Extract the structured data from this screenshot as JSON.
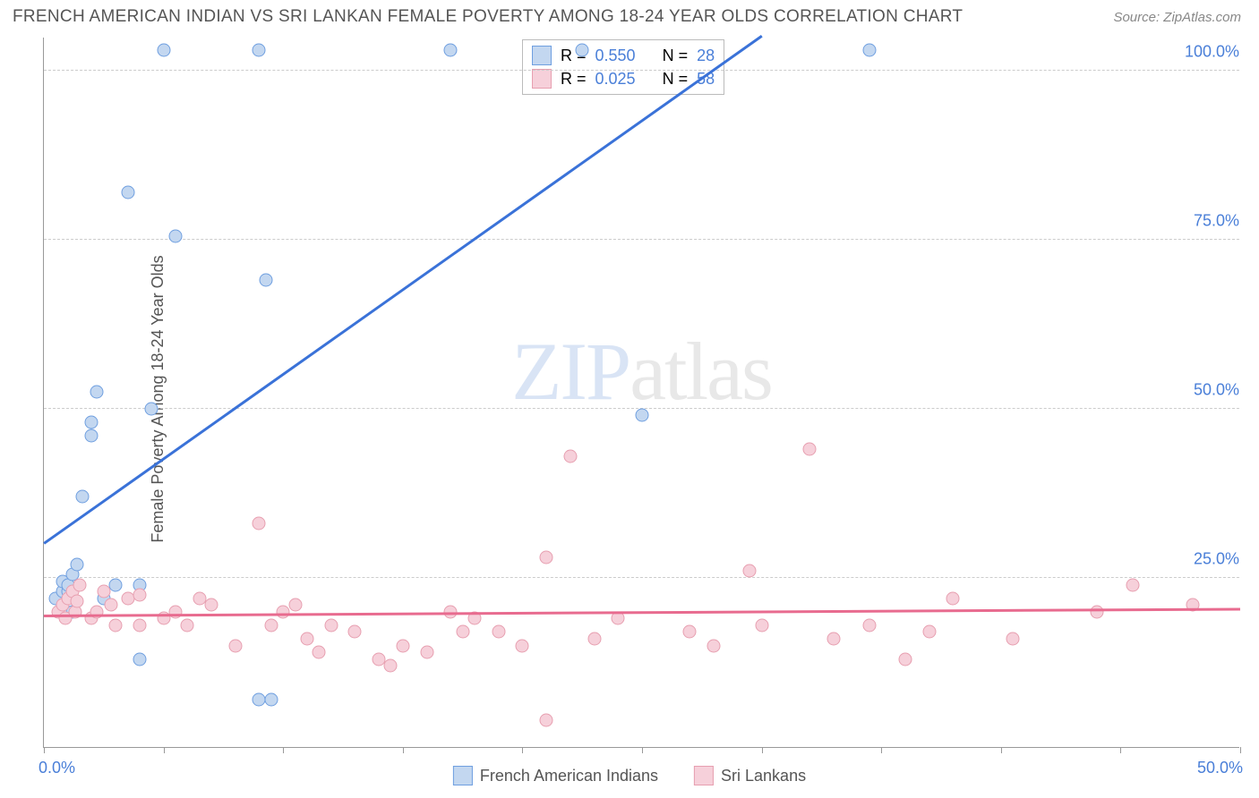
{
  "title": "FRENCH AMERICAN INDIAN VS SRI LANKAN FEMALE POVERTY AMONG 18-24 YEAR OLDS CORRELATION CHART",
  "source": "Source: ZipAtlas.com",
  "y_axis_title": "Female Poverty Among 18-24 Year Olds",
  "watermark_a": "ZIP",
  "watermark_b": "atlas",
  "chart": {
    "type": "scatter",
    "xlim": [
      0,
      50
    ],
    "ylim": [
      0,
      105
    ],
    "x_ticks": [
      0,
      5,
      10,
      15,
      20,
      25,
      30,
      35,
      40,
      45,
      50
    ],
    "y_grid": [
      25,
      50,
      75,
      100
    ],
    "x_origin_label": "0.0%",
    "x_end_label": "50.0%",
    "y_tick_labels": {
      "25": "25.0%",
      "50": "50.0%",
      "75": "75.0%",
      "100": "100.0%"
    },
    "background_color": "#ffffff",
    "grid_color": "#cccccc",
    "axis_color": "#999999",
    "series": [
      {
        "name": "French American Indians",
        "fill": "#c3d7f0",
        "stroke": "#6f9fe0",
        "trend_color": "#3a72d8",
        "trend": {
          "x1": 0,
          "y1": 30,
          "x2": 30,
          "y2": 105
        },
        "R": "0.550",
        "N": "28",
        "points": [
          [
            0.5,
            22
          ],
          [
            0.8,
            23
          ],
          [
            0.8,
            24.5
          ],
          [
            1.0,
            23
          ],
          [
            1.0,
            24
          ],
          [
            1.2,
            25.5
          ],
          [
            1.2,
            20
          ],
          [
            1.4,
            27
          ],
          [
            1.6,
            37
          ],
          [
            2.0,
            46
          ],
          [
            2.0,
            48
          ],
          [
            2.2,
            52.5
          ],
          [
            2.5,
            22
          ],
          [
            3.0,
            24
          ],
          [
            3.5,
            82
          ],
          [
            4.0,
            13
          ],
          [
            4.0,
            24
          ],
          [
            4.5,
            50
          ],
          [
            5.0,
            103
          ],
          [
            5.5,
            75.5
          ],
          [
            9.0,
            103
          ],
          [
            9.0,
            7
          ],
          [
            9.3,
            69
          ],
          [
            9.5,
            7
          ],
          [
            17.0,
            103
          ],
          [
            22.5,
            103
          ],
          [
            25.0,
            49
          ],
          [
            34.5,
            103
          ]
        ]
      },
      {
        "name": "Sri Lankans",
        "fill": "#f6d0da",
        "stroke": "#e79fb0",
        "trend_color": "#e86b8f",
        "trend": {
          "x1": 0,
          "y1": 19.2,
          "x2": 50,
          "y2": 20.2
        },
        "R": "0.025",
        "N": "58",
        "points": [
          [
            0.6,
            20
          ],
          [
            0.8,
            21
          ],
          [
            0.9,
            19
          ],
          [
            1.0,
            22
          ],
          [
            1.2,
            23
          ],
          [
            1.3,
            20
          ],
          [
            1.4,
            21.5
          ],
          [
            1.5,
            24
          ],
          [
            2.0,
            19
          ],
          [
            2.2,
            20
          ],
          [
            2.5,
            23
          ],
          [
            2.8,
            21
          ],
          [
            3.0,
            18
          ],
          [
            3.5,
            22
          ],
          [
            4.0,
            18
          ],
          [
            4.0,
            22.5
          ],
          [
            5.0,
            19
          ],
          [
            5.5,
            20
          ],
          [
            6.0,
            18
          ],
          [
            6.5,
            22
          ],
          [
            7.0,
            21
          ],
          [
            8.0,
            15
          ],
          [
            9.0,
            33
          ],
          [
            9.5,
            18
          ],
          [
            10.0,
            20
          ],
          [
            10.5,
            21
          ],
          [
            11.0,
            16
          ],
          [
            11.5,
            14
          ],
          [
            12.0,
            18
          ],
          [
            13.0,
            17
          ],
          [
            14.0,
            13
          ],
          [
            14.5,
            12
          ],
          [
            15.0,
            15
          ],
          [
            16.0,
            14
          ],
          [
            17.0,
            20
          ],
          [
            17.5,
            17
          ],
          [
            18.0,
            19
          ],
          [
            19.0,
            17
          ],
          [
            20.0,
            15
          ],
          [
            21.0,
            28
          ],
          [
            21.0,
            4
          ],
          [
            22.0,
            43
          ],
          [
            23.0,
            16
          ],
          [
            24.0,
            19
          ],
          [
            27.0,
            17
          ],
          [
            28.0,
            15
          ],
          [
            29.5,
            26
          ],
          [
            30.0,
            18
          ],
          [
            32.0,
            44
          ],
          [
            33.0,
            16
          ],
          [
            34.5,
            18
          ],
          [
            36.0,
            13
          ],
          [
            37.0,
            17
          ],
          [
            38.0,
            22
          ],
          [
            40.5,
            16
          ],
          [
            44.0,
            20
          ],
          [
            45.5,
            24
          ],
          [
            48.0,
            21
          ]
        ]
      }
    ]
  },
  "stats_label_R": "R =",
  "stats_label_N": "N ="
}
